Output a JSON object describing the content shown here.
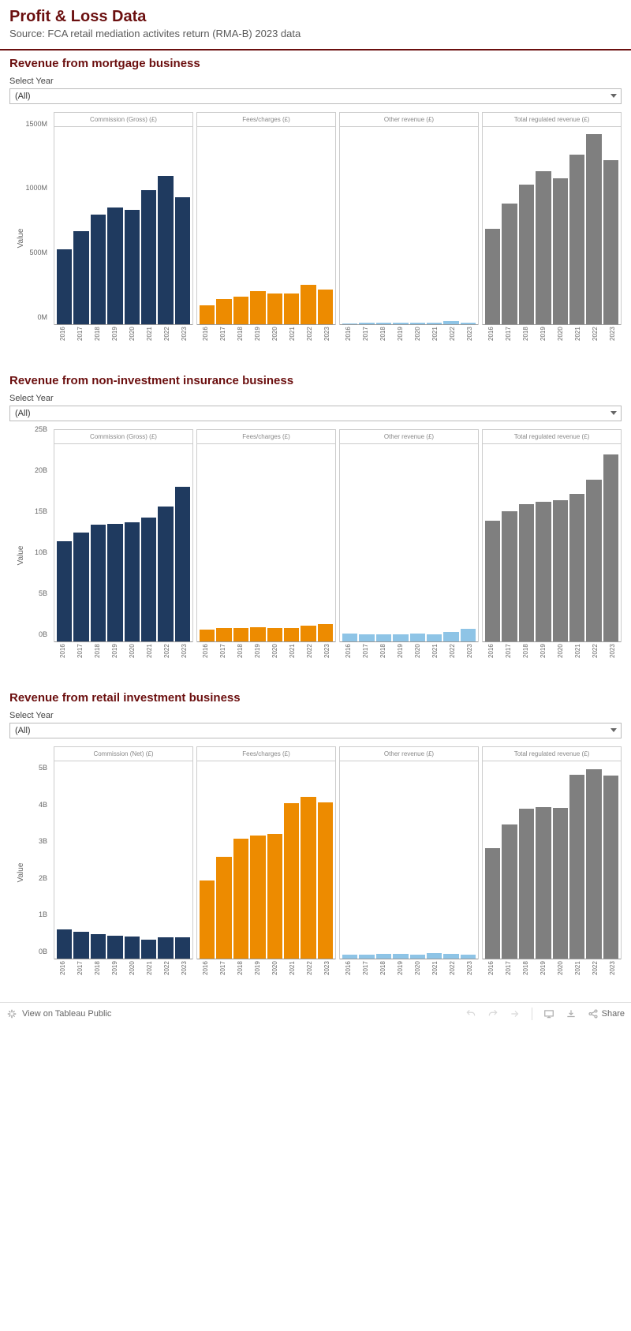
{
  "header": {
    "title": "Profit & Loss Data",
    "subtitle": "Source: FCA retail mediation activites return (RMA-B) 2023 data"
  },
  "colors": {
    "commission": "#1f3a5f",
    "fees": "#ed8b00",
    "other": "#8ec4e6",
    "total": "#7f7f7f",
    "border": "#cccccc",
    "title": "#6b0f0f"
  },
  "years": [
    "2016",
    "2017",
    "2018",
    "2019",
    "2020",
    "2021",
    "2022",
    "2023"
  ],
  "sections": [
    {
      "key": "mortgage",
      "title": "Revenue from mortgage business",
      "select_label": "Select Year",
      "select_value": "(All)",
      "y_label": "Value",
      "y_max": 1650,
      "y_ticks": [
        {
          "v": 0,
          "l": "0M"
        },
        {
          "v": 500,
          "l": "500M"
        },
        {
          "v": 1000,
          "l": "1000M"
        },
        {
          "v": 1500,
          "l": "1500M"
        }
      ],
      "panels": [
        {
          "label": "Commission (Gross) (£)",
          "color": "#1f3a5f",
          "values": [
            630,
            780,
            920,
            980,
            960,
            1120,
            1240,
            1060
          ]
        },
        {
          "label": "Fees/charges (£)",
          "color": "#ed8b00",
          "values": [
            160,
            210,
            230,
            280,
            260,
            260,
            330,
            290
          ]
        },
        {
          "label": "Other revenue (£)",
          "color": "#8ec4e6",
          "values": [
            10,
            15,
            15,
            15,
            12,
            12,
            25,
            15
          ]
        },
        {
          "label": "Total regulated revenue (£)",
          "color": "#7f7f7f",
          "values": [
            800,
            1010,
            1170,
            1280,
            1220,
            1420,
            1590,
            1370
          ]
        }
      ]
    },
    {
      "key": "insurance",
      "title": "Revenue from non-investment insurance business",
      "select_label": "Select Year",
      "select_value": "(All)",
      "y_label": "Value",
      "y_max": 26,
      "y_ticks": [
        {
          "v": 0,
          "l": "0B"
        },
        {
          "v": 5,
          "l": "5B"
        },
        {
          "v": 10,
          "l": "10B"
        },
        {
          "v": 15,
          "l": "15B"
        },
        {
          "v": 20,
          "l": "20B"
        },
        {
          "v": 25,
          "l": "25B"
        }
      ],
      "panels": [
        {
          "label": "Commission (Gross) (£)",
          "color": "#1f3a5f",
          "values": [
            13.2,
            14.4,
            15.4,
            15.5,
            15.7,
            16.3,
            17.8,
            20.4
          ]
        },
        {
          "label": "Fees/charges (£)",
          "color": "#ed8b00",
          "values": [
            1.6,
            1.8,
            1.8,
            1.9,
            1.8,
            1.8,
            2.1,
            2.3
          ]
        },
        {
          "label": "Other revenue (£)",
          "color": "#8ec4e6",
          "values": [
            1.0,
            0.9,
            0.9,
            0.9,
            1.0,
            0.9,
            1.3,
            1.7
          ]
        },
        {
          "label": "Total regulated revenue (£)",
          "color": "#7f7f7f",
          "values": [
            15.9,
            17.2,
            18.1,
            18.4,
            18.6,
            19.4,
            21.3,
            24.6
          ]
        }
      ]
    },
    {
      "key": "retail",
      "title": "Revenue from retail investment business",
      "select_label": "Select Year",
      "select_value": "(All)",
      "y_label": "Value",
      "y_max": 5.8,
      "y_ticks": [
        {
          "v": 0,
          "l": "0B"
        },
        {
          "v": 1,
          "l": "1B"
        },
        {
          "v": 2,
          "l": "2B"
        },
        {
          "v": 3,
          "l": "3B"
        },
        {
          "v": 4,
          "l": "4B"
        },
        {
          "v": 5,
          "l": "5B"
        }
      ],
      "panels": [
        {
          "label": "Commission (Net) (£)",
          "color": "#1f3a5f",
          "values": [
            0.85,
            0.78,
            0.72,
            0.68,
            0.65,
            0.56,
            0.62,
            0.62
          ]
        },
        {
          "label": "Fees/charges (£)",
          "color": "#ed8b00",
          "values": [
            2.3,
            3.0,
            3.52,
            3.62,
            3.66,
            4.56,
            4.76,
            4.6
          ]
        },
        {
          "label": "Other revenue (£)",
          "color": "#8ec4e6",
          "values": [
            0.12,
            0.12,
            0.13,
            0.14,
            0.12,
            0.16,
            0.14,
            0.12
          ]
        },
        {
          "label": "Total regulated revenue (£)",
          "color": "#7f7f7f",
          "values": [
            3.25,
            3.95,
            4.4,
            4.46,
            4.42,
            5.4,
            5.56,
            5.38
          ]
        }
      ]
    }
  ],
  "toolbar": {
    "view_label": "View on Tableau Public",
    "share_label": "Share"
  }
}
